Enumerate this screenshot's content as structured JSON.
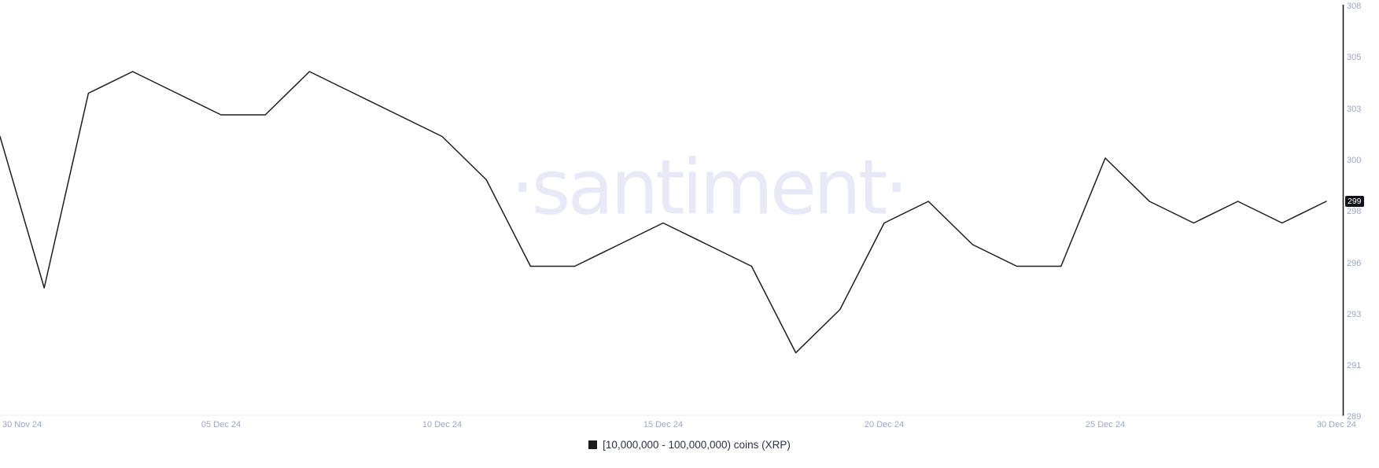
{
  "watermark": "·santiment·",
  "legend": {
    "label": "[10,000,000 - 100,000,000) coins (XRP)",
    "marker_color": "#1d1d21"
  },
  "y_axis": {
    "ticks": [
      "308",
      "305",
      "303",
      "300",
      "298",
      "296",
      "293",
      "291",
      "289"
    ],
    "current_value_badge": "299"
  },
  "x_axis": {
    "ticks": [
      "30 Nov 24",
      "05 Dec 24",
      "10 Dec 24",
      "15 Dec 24",
      "20 Dec 24",
      "25 Dec 24",
      "30 Dec 24"
    ]
  },
  "chart_data": {
    "type": "line",
    "title": "",
    "series_name": "[10,000,000 - 100,000,000) coins (XRP)",
    "line_color": "#1d1d21",
    "tick_label_color": "#9aa6c6",
    "watermark_color": "#e7eaf6",
    "legend_position": "bottom-center",
    "grid": false,
    "ylim": [
      289,
      308
    ],
    "x": [
      "2024-11-30",
      "2024-12-01",
      "2024-12-02",
      "2024-12-03",
      "2024-12-04",
      "2024-12-05",
      "2024-12-06",
      "2024-12-07",
      "2024-12-08",
      "2024-12-09",
      "2024-12-10",
      "2024-12-11",
      "2024-12-12",
      "2024-12-13",
      "2024-12-14",
      "2024-12-15",
      "2024-12-16",
      "2024-12-17",
      "2024-12-18",
      "2024-12-19",
      "2024-12-20",
      "2024-12-21",
      "2024-12-22",
      "2024-12-23",
      "2024-12-24",
      "2024-12-25",
      "2024-12-26",
      "2024-12-27",
      "2024-12-28",
      "2024-12-29",
      "2024-12-30"
    ],
    "values": [
      302,
      295,
      304,
      305,
      304,
      303,
      303,
      305,
      304,
      303,
      302,
      300,
      296,
      296,
      297,
      298,
      297,
      296,
      292,
      294,
      298,
      299,
      297,
      296,
      296,
      301,
      299,
      298,
      299,
      298,
      299
    ],
    "last_value": 299
  }
}
